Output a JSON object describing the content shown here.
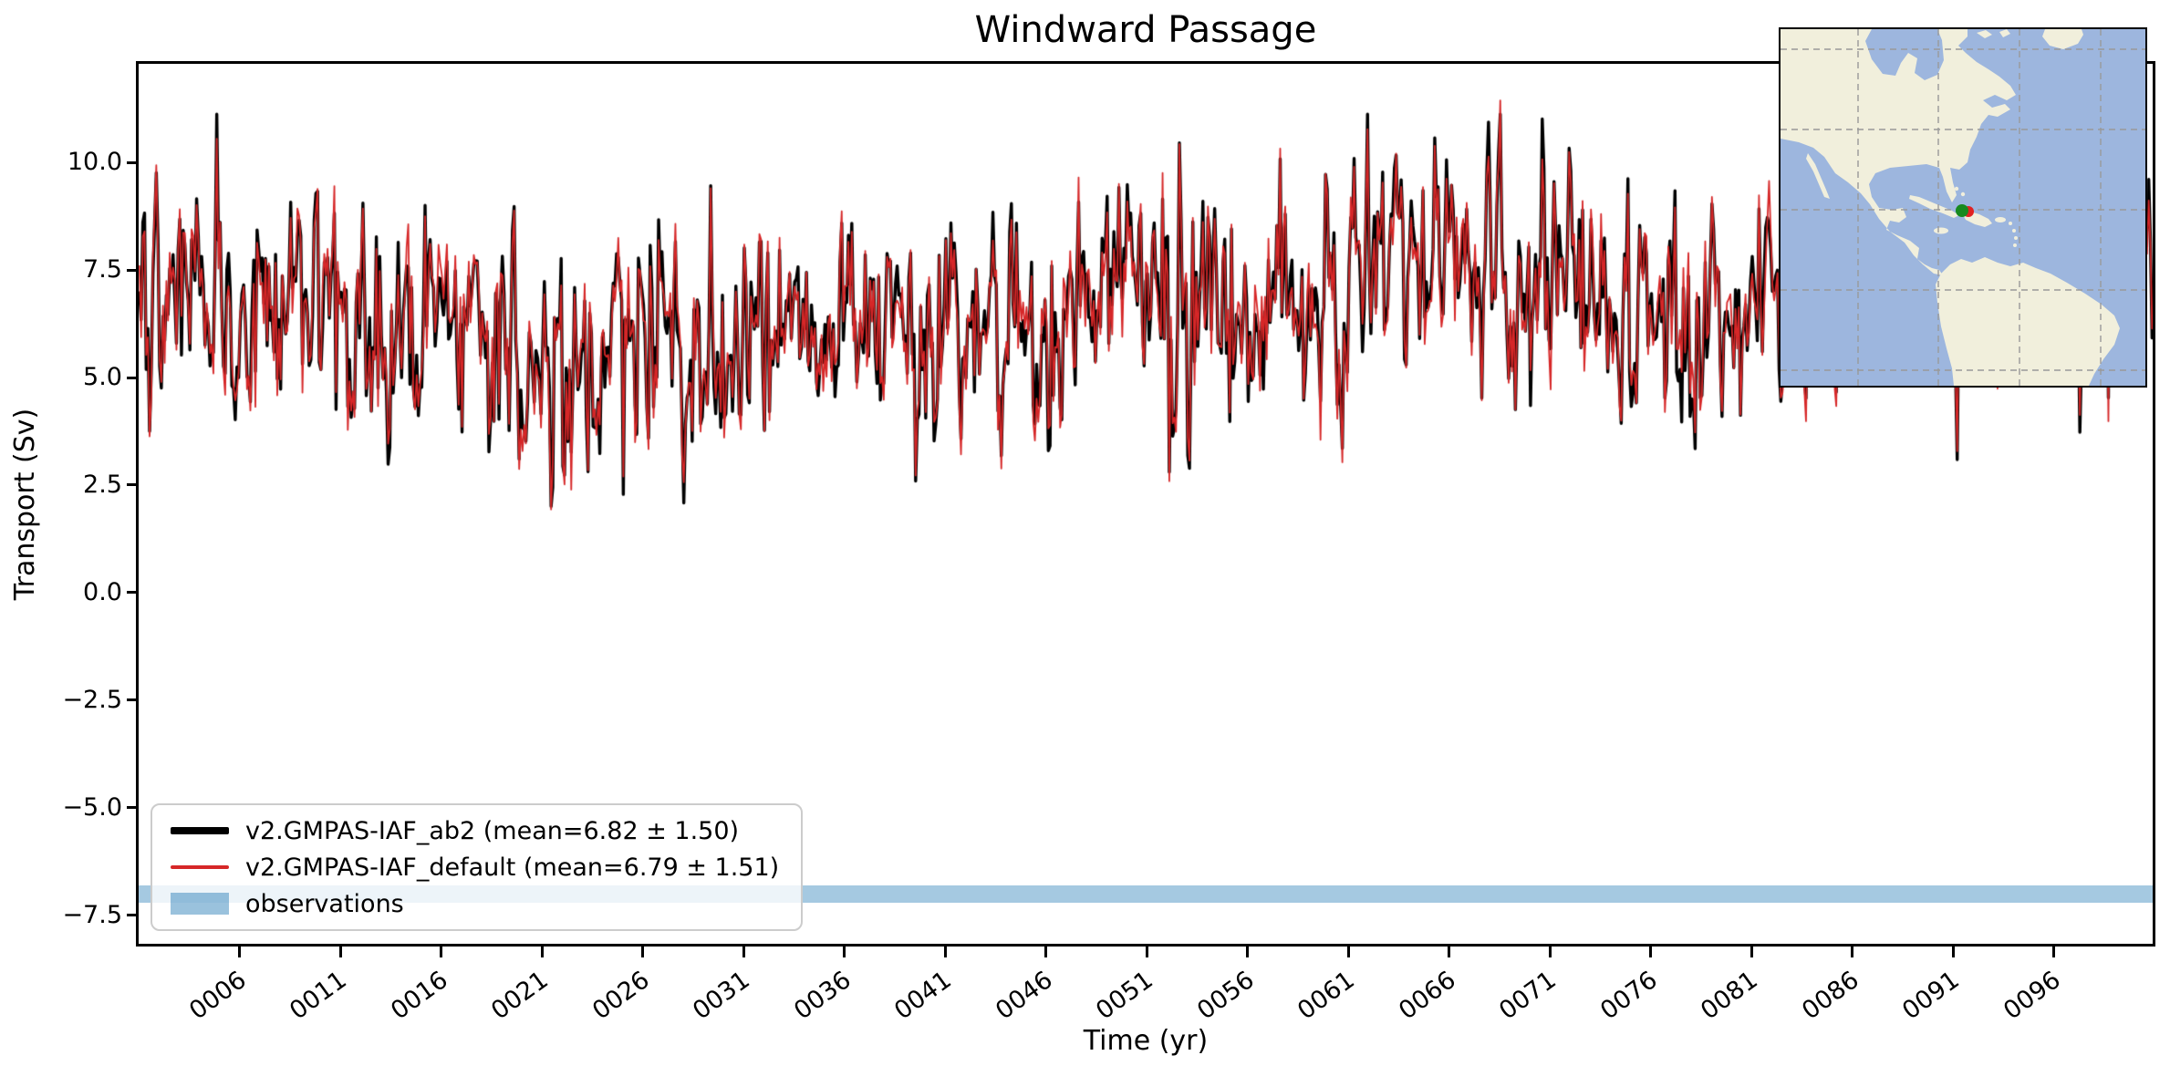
{
  "title": "Windward Passage",
  "axes": {
    "xlabel": "Time (yr)",
    "ylabel": "Transport (Sv)",
    "xlim": [
      1.0,
      100.9
    ],
    "ylim": [
      -8.16,
      12.29
    ],
    "x_ticks": [
      {
        "year": 6,
        "label": "0006"
      },
      {
        "year": 11,
        "label": "0011"
      },
      {
        "year": 16,
        "label": "0016"
      },
      {
        "year": 21,
        "label": "0021"
      },
      {
        "year": 26,
        "label": "0026"
      },
      {
        "year": 31,
        "label": "0031"
      },
      {
        "year": 36,
        "label": "0036"
      },
      {
        "year": 41,
        "label": "0041"
      },
      {
        "year": 46,
        "label": "0046"
      },
      {
        "year": 51,
        "label": "0051"
      },
      {
        "year": 56,
        "label": "0056"
      },
      {
        "year": 61,
        "label": "0061"
      },
      {
        "year": 66,
        "label": "0066"
      },
      {
        "year": 71,
        "label": "0071"
      },
      {
        "year": 76,
        "label": "0076"
      },
      {
        "year": 81,
        "label": "0081"
      },
      {
        "year": 86,
        "label": "0086"
      },
      {
        "year": 91,
        "label": "0091"
      },
      {
        "year": 96,
        "label": "0096"
      }
    ],
    "y_ticks": [
      {
        "value": 10.0,
        "label": "10.0"
      },
      {
        "value": 7.5,
        "label": "7.5"
      },
      {
        "value": 5.0,
        "label": "5.0"
      },
      {
        "value": 2.5,
        "label": "2.5"
      },
      {
        "value": 0.0,
        "label": "0.0"
      },
      {
        "value": -2.5,
        "label": "−2.5"
      },
      {
        "value": -5.0,
        "label": "−5.0"
      },
      {
        "value": -7.5,
        "label": "−7.5"
      }
    ]
  },
  "chart_data": {
    "type": "line",
    "x_unit": "years (monthly samples)",
    "x_start": 1.042,
    "x_step": 0.08333,
    "n_points": 1199,
    "series": [
      {
        "name": "v2.GMPAS-IAF_ab2",
        "color": "#000000",
        "linewidth": 3.4,
        "mean": 6.82,
        "std": 1.5,
        "min": 1.7,
        "max": 11.1,
        "seed": 101
      },
      {
        "name": "v2.GMPAS-IAF_default",
        "color": "#d62728",
        "linewidth": 1.8,
        "mean": 6.79,
        "std": 1.51,
        "min": 1.6,
        "max": 11.2,
        "seed": 202,
        "tracks_series": 0,
        "track_gain": 0.97,
        "deviation_std": 0.35,
        "deviation_phi": 0.3
      }
    ],
    "generator": {
      "phi_fast": 0.35,
      "fast_std": 1.33,
      "phi_slow": 0.985,
      "slow_std": 0.69,
      "clamp_low": -5.1,
      "clamp_high": 4.3
    },
    "observations_band": {
      "label": "observations",
      "ymin": -7.2,
      "ymax": -6.8,
      "color": "rgba(31,119,180,0.40)"
    }
  },
  "legend": {
    "items": [
      {
        "label": "v2.GMPAS-IAF_ab2 (mean=6.82 ± 1.50)",
        "swatch": "thick-black-line",
        "swatch_color": "#000000"
      },
      {
        "label": "v2.GMPAS-IAF_default (mean=6.79 ± 1.51)",
        "swatch": "thin-red-line",
        "swatch_color": "#d62728"
      },
      {
        "label": "observations",
        "swatch": "filled-band",
        "swatch_color": "rgba(31,119,180,0.45)"
      }
    ]
  },
  "inset_map": {
    "description": "Americas locator map with Windward Passage marker",
    "ocean_color": "#9db6de",
    "land_color": "#f1efdc",
    "grid_color": "#999999",
    "border_color": "#000000",
    "marker_green_color": "#178a1e",
    "marker_red_color": "#e02222"
  }
}
